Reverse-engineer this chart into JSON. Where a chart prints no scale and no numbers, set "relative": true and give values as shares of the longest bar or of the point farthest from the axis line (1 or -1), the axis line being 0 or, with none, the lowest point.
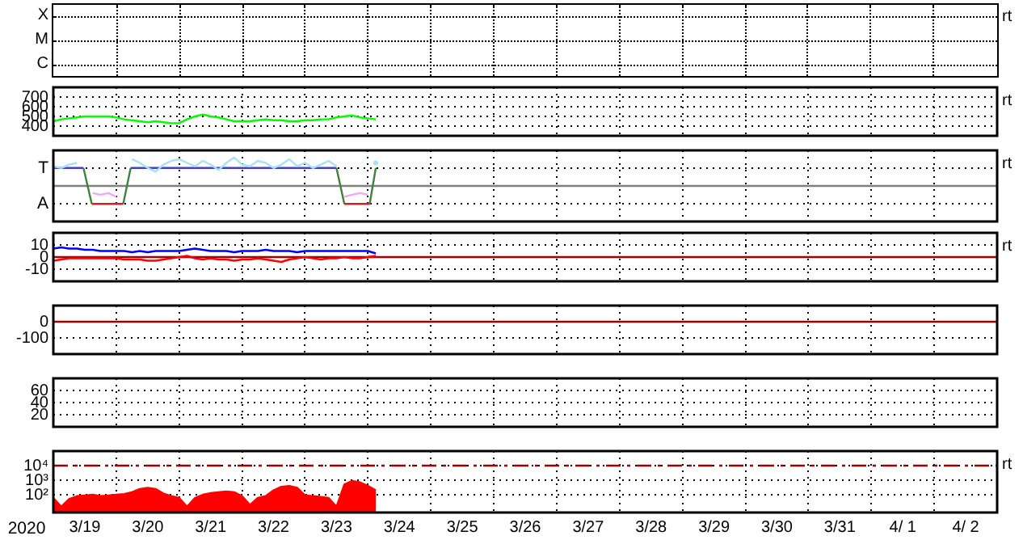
{
  "chart_data": [
    {
      "type": "other",
      "y_categories": [
        "X",
        "M",
        "C"
      ],
      "annotations": [
        "rt"
      ]
    },
    {
      "type": "line",
      "xlim": [
        "2020-03-19T00:00",
        "2020-04-03T00:00"
      ],
      "ylim": [
        300,
        800
      ],
      "yticks": [
        400,
        500,
        600,
        700
      ],
      "grid": true,
      "tick_labels": "y",
      "x": [
        "2020-03-19T00:00",
        "2020-03-19T03:00",
        "2020-03-19T06:00",
        "2020-03-19T09:00",
        "2020-03-19T12:00",
        "2020-03-19T15:00",
        "2020-03-19T18:00",
        "2020-03-19T21:00",
        "2020-03-20T00:00",
        "2020-03-20T03:00",
        "2020-03-20T06:00",
        "2020-03-20T09:00",
        "2020-03-20T12:00",
        "2020-03-20T15:00",
        "2020-03-20T18:00",
        "2020-03-20T21:00",
        "2020-03-21T00:00",
        "2020-03-21T03:00",
        "2020-03-21T06:00",
        "2020-03-21T09:00",
        "2020-03-21T12:00",
        "2020-03-21T15:00",
        "2020-03-21T18:00",
        "2020-03-21T21:00",
        "2020-03-22T00:00",
        "2020-03-22T03:00",
        "2020-03-22T06:00",
        "2020-03-22T09:00",
        "2020-03-22T12:00",
        "2020-03-22T15:00",
        "2020-03-22T18:00",
        "2020-03-22T21:00",
        "2020-03-23T00:00",
        "2020-03-23T03:00",
        "2020-03-23T06:00",
        "2020-03-23T09:00",
        "2020-03-23T12:00",
        "2020-03-23T15:00",
        "2020-03-23T18:00",
        "2020-03-23T21:00",
        "2020-03-24T00:00",
        "2020-03-24T03:00"
      ],
      "series": [
        {
          "color": "#00ff00",
          "values": [
            450,
            470,
            480,
            490,
            500,
            500,
            500,
            500,
            490,
            470,
            460,
            450,
            440,
            450,
            440,
            430,
            430,
            470,
            500,
            520,
            500,
            490,
            470,
            450,
            450,
            450,
            460,
            470,
            460,
            460,
            450,
            450,
            460,
            460,
            470,
            470,
            490,
            500,
            510,
            490,
            480,
            470
          ]
        }
      ],
      "annotations": [
        "rt"
      ]
    },
    {
      "type": "line",
      "xlim": [
        "2020-03-19T00:00",
        "2020-04-03T00:00"
      ],
      "relative": true,
      "y_categories": [
        "T",
        "A"
      ],
      "grid": true,
      "tick_labels": "y",
      "ref_lines": [
        {
          "axis": "y",
          "value": 0,
          "color": "#808080"
        }
      ],
      "x": [
        "2020-03-19T00:00",
        "2020-03-19T03:00",
        "2020-03-19T06:00",
        "2020-03-19T09:00",
        "2020-03-19T12:00",
        "2020-03-19T15:00",
        "2020-03-19T18:00",
        "2020-03-19T21:00",
        "2020-03-20T00:00",
        "2020-03-20T03:00",
        "2020-03-20T06:00",
        "2020-03-20T09:00",
        "2020-03-20T12:00",
        "2020-03-20T15:00",
        "2020-03-20T18:00",
        "2020-03-20T21:00",
        "2020-03-21T00:00",
        "2020-03-21T03:00",
        "2020-03-21T06:00",
        "2020-03-21T09:00",
        "2020-03-21T12:00",
        "2020-03-21T15:00",
        "2020-03-21T18:00",
        "2020-03-21T21:00",
        "2020-03-22T00:00",
        "2020-03-22T03:00",
        "2020-03-22T06:00",
        "2020-03-22T09:00",
        "2020-03-22T12:00",
        "2020-03-22T15:00",
        "2020-03-22T18:00",
        "2020-03-22T21:00",
        "2020-03-23T00:00",
        "2020-03-23T03:00",
        "2020-03-23T06:00",
        "2020-03-23T09:00",
        "2020-03-23T12:00",
        "2020-03-23T15:00",
        "2020-03-23T18:00",
        "2020-03-23T21:00",
        "2020-03-24T00:00",
        "2020-03-24T03:00"
      ],
      "series": [
        {
          "color": "#a8e0f8",
          "values": [
            0.69,
            0.63,
            0.75,
            0.81,
            null,
            null,
            null,
            null,
            null,
            null,
            0.94,
            0.81,
            0.63,
            0.5,
            0.75,
            0.88,
            0.94,
            0.81,
            0.69,
            0.88,
            0.75,
            0.56,
            0.81,
            1,
            0.75,
            0.69,
            0.88,
            0.81,
            0.63,
            0.75,
            0.94,
            0.69,
            0.81,
            0.63,
            0.75,
            0.88,
            0.69,
            null,
            null,
            null,
            null,
            0.81
          ]
        },
        {
          "color": "#f0a8f0",
          "values": [
            null,
            null,
            null,
            null,
            null,
            -0.25,
            -0.31,
            -0.25,
            -0.38,
            null,
            null,
            null,
            null,
            null,
            null,
            null,
            null,
            null,
            null,
            null,
            null,
            null,
            null,
            null,
            null,
            null,
            null,
            null,
            null,
            null,
            null,
            null,
            null,
            null,
            null,
            null,
            null,
            -0.38,
            -0.31,
            -0.25,
            -0.31,
            null
          ]
        },
        {
          "color": "#4040d0",
          "x": [
            "2020-03-19T00:00",
            "2020-03-19T11:30",
            "2020-03-19T18:00",
            "2020-03-20T05:30",
            "2020-03-23T12:00"
          ],
          "values": [
            0.63,
            0.63,
            null,
            0.63,
            0.63
          ]
        },
        {
          "color": "#d02020",
          "x": [
            "2020-03-19T14:40",
            "2020-03-20T02:40",
            "2020-03-21T00:00",
            "2020-03-23T15:00",
            "2020-03-24T00:40"
          ],
          "values": [
            -0.63,
            -0.63,
            null,
            -0.63,
            -0.63
          ]
        },
        {
          "color": "#408040",
          "x": [
            "2020-03-19T11:30",
            "2020-03-19T14:40",
            "2020-03-19T18:00",
            "2020-03-20T02:40",
            "2020-03-20T05:30",
            "2020-03-21T00:00",
            "2020-03-23T12:00",
            "2020-03-23T15:00",
            "2020-03-23T18:00",
            "2020-03-24T00:40",
            "2020-03-24T03:00"
          ],
          "values": [
            0.63,
            -0.63,
            null,
            -0.63,
            0.63,
            null,
            0.63,
            -0.63,
            null,
            -0.63,
            0.63
          ]
        }
      ],
      "annotations": [
        "rt"
      ]
    },
    {
      "type": "line",
      "xlim": [
        "2020-03-19T00:00",
        "2020-04-03T00:00"
      ],
      "ylim": [
        -20,
        20
      ],
      "yticks": [
        -10,
        0,
        10
      ],
      "grid": true,
      "tick_labels": "y",
      "ref_lines": [
        {
          "axis": "y",
          "value": 0,
          "color": "#a00000"
        }
      ],
      "x": [
        "2020-03-19T00:00",
        "2020-03-19T03:00",
        "2020-03-19T06:00",
        "2020-03-19T09:00",
        "2020-03-19T12:00",
        "2020-03-19T15:00",
        "2020-03-19T18:00",
        "2020-03-19T21:00",
        "2020-03-20T00:00",
        "2020-03-20T03:00",
        "2020-03-20T06:00",
        "2020-03-20T09:00",
        "2020-03-20T12:00",
        "2020-03-20T15:00",
        "2020-03-20T18:00",
        "2020-03-20T21:00",
        "2020-03-21T00:00",
        "2020-03-21T03:00",
        "2020-03-21T06:00",
        "2020-03-21T09:00",
        "2020-03-21T12:00",
        "2020-03-21T15:00",
        "2020-03-21T18:00",
        "2020-03-21T21:00",
        "2020-03-22T00:00",
        "2020-03-22T03:00",
        "2020-03-22T06:00",
        "2020-03-22T09:00",
        "2020-03-22T12:00",
        "2020-03-22T15:00",
        "2020-03-22T18:00",
        "2020-03-22T21:00",
        "2020-03-23T00:00",
        "2020-03-23T03:00",
        "2020-03-23T06:00",
        "2020-03-23T09:00",
        "2020-03-23T12:00",
        "2020-03-23T15:00",
        "2020-03-23T18:00",
        "2020-03-23T21:00",
        "2020-03-24T00:00",
        "2020-03-24T03:00"
      ],
      "series": [
        {
          "color": "#0000ff",
          "values": [
            7,
            8,
            7,
            7,
            6,
            6,
            5,
            5,
            5,
            5,
            4,
            5,
            4,
            5,
            5,
            5,
            5,
            6,
            7,
            6,
            5,
            5,
            5,
            4,
            5,
            5,
            5,
            6,
            5,
            5,
            5,
            4,
            5,
            5,
            5,
            5,
            5,
            5,
            5,
            5,
            5,
            3
          ]
        },
        {
          "color": "#ff0000",
          "values": [
            -3,
            -2,
            -1,
            -1,
            -1,
            -1,
            -1,
            -1,
            -1,
            -2,
            -2,
            -2,
            -3,
            -3,
            -2,
            -1,
            0,
            1,
            -1,
            -2,
            -1,
            -2,
            -2,
            -3,
            -2,
            -2,
            -1,
            -2,
            -3,
            -4,
            -2,
            -1,
            0,
            -1,
            -2,
            -1,
            -1,
            0,
            -1,
            -1,
            0,
            1
          ]
        }
      ],
      "annotations": [
        "rt"
      ]
    },
    {
      "type": "line",
      "xlim": [
        "2020-03-19T00:00",
        "2020-04-03T00:00"
      ],
      "ylim": [
        -200,
        100
      ],
      "yticks": [
        -100,
        0
      ],
      "grid": true,
      "tick_labels": "y",
      "ref_lines": [
        {
          "axis": "y",
          "value": 0,
          "color": "#a00000"
        }
      ]
    },
    {
      "type": "line",
      "xlim": [
        "2020-03-19T00:00",
        "2020-04-03T00:00"
      ],
      "ylim": [
        0,
        80
      ],
      "yticks": [
        20,
        40,
        60
      ],
      "grid": true,
      "tick_labels": "y"
    },
    {
      "type": "area",
      "xlim": [
        "2020-03-19T00:00",
        "2020-04-03T00:00"
      ],
      "xticks": [
        {
          "value": "2020-03-19T12:00",
          "label": "3/19"
        },
        {
          "value": "2020-03-20T00:00",
          "label": null
        },
        {
          "value": "2020-03-20T12:00",
          "label": "3/20"
        },
        {
          "value": "2020-03-21T00:00",
          "label": null
        },
        {
          "value": "2020-03-21T12:00",
          "label": "3/21"
        },
        {
          "value": "2020-03-22T00:00",
          "label": null
        },
        {
          "value": "2020-03-22T12:00",
          "label": "3/22"
        },
        {
          "value": "2020-03-23T00:00",
          "label": null
        },
        {
          "value": "2020-03-23T12:00",
          "label": "3/23"
        },
        {
          "value": "2020-03-24T00:00",
          "label": null
        },
        {
          "value": "2020-03-24T12:00",
          "label": "3/24"
        },
        {
          "value": "2020-03-25T00:00",
          "label": null
        },
        {
          "value": "2020-03-25T12:00",
          "label": "3/25"
        },
        {
          "value": "2020-03-26T00:00",
          "label": null
        },
        {
          "value": "2020-03-26T12:00",
          "label": "3/26"
        },
        {
          "value": "2020-03-27T00:00",
          "label": null
        },
        {
          "value": "2020-03-27T12:00",
          "label": "3/27"
        },
        {
          "value": "2020-03-28T00:00",
          "label": null
        },
        {
          "value": "2020-03-28T12:00",
          "label": "3/28"
        },
        {
          "value": "2020-03-29T00:00",
          "label": null
        },
        {
          "value": "2020-03-29T12:00",
          "label": "3/29"
        },
        {
          "value": "2020-03-30T00:00",
          "label": null
        },
        {
          "value": "2020-03-30T12:00",
          "label": "3/30"
        },
        {
          "value": "2020-03-31T00:00",
          "label": null
        },
        {
          "value": "2020-03-31T12:00",
          "label": "3/31"
        },
        {
          "value": "2020-04-01T00:00",
          "label": null
        },
        {
          "value": "2020-04-01T12:00",
          "label": "4/ 1"
        },
        {
          "value": "2020-04-02T00:00",
          "label": null
        },
        {
          "value": "2020-04-02T12:00",
          "label": "4/ 2"
        }
      ],
      "xlabel": "2020",
      "log": true,
      "ylim": [
        6,
        100000
      ],
      "yticks": [
        {
          "value": 100,
          "label": "10²"
        },
        {
          "value": 1000,
          "label": "10³"
        },
        {
          "value": 10000,
          "label": "10⁴"
        }
      ],
      "grid": true,
      "ref_lines": [
        {
          "axis": "y",
          "value": 10000,
          "color": "#a00000",
          "line_style": "dashed"
        }
      ],
      "x": [
        "2020-03-19T00:00",
        "2020-03-19T03:00",
        "2020-03-19T06:00",
        "2020-03-19T09:00",
        "2020-03-19T12:00",
        "2020-03-19T15:00",
        "2020-03-19T18:00",
        "2020-03-19T21:00",
        "2020-03-20T00:00",
        "2020-03-20T03:00",
        "2020-03-20T06:00",
        "2020-03-20T09:00",
        "2020-03-20T12:00",
        "2020-03-20T15:00",
        "2020-03-20T18:00",
        "2020-03-20T21:00",
        "2020-03-21T00:00",
        "2020-03-21T03:00",
        "2020-03-21T06:00",
        "2020-03-21T09:00",
        "2020-03-21T12:00",
        "2020-03-21T15:00",
        "2020-03-21T18:00",
        "2020-03-21T21:00",
        "2020-03-22T00:00",
        "2020-03-22T03:00",
        "2020-03-22T06:00",
        "2020-03-22T09:00",
        "2020-03-22T12:00",
        "2020-03-22T15:00",
        "2020-03-22T18:00",
        "2020-03-22T21:00",
        "2020-03-23T00:00",
        "2020-03-23T03:00",
        "2020-03-23T06:00",
        "2020-03-23T09:00",
        "2020-03-23T12:00",
        "2020-03-23T15:00",
        "2020-03-23T18:00",
        "2020-03-23T21:00",
        "2020-03-24T00:00",
        "2020-03-24T03:00"
      ],
      "series": [
        {
          "color": "#ff0000",
          "values": [
            60,
            15,
            50,
            80,
            90,
            100,
            80,
            90,
            100,
            110,
            150,
            250,
            300,
            250,
            120,
            80,
            60,
            15,
            60,
            100,
            130,
            150,
            170,
            150,
            80,
            20,
            60,
            80,
            200,
            350,
            400,
            300,
            90,
            80,
            70,
            60,
            15,
            500,
            900,
            700,
            400,
            200
          ]
        }
      ],
      "annotations": [
        "rt"
      ]
    }
  ]
}
